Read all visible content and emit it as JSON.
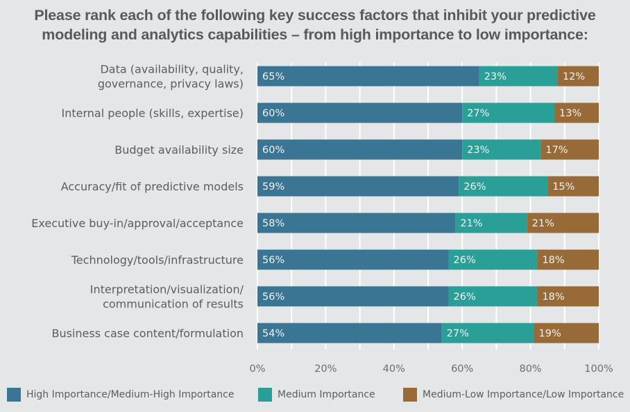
{
  "chart_data": {
    "type": "bar",
    "orientation": "horizontal",
    "stacked": true,
    "title": "Please rank each of the following key success factors that inhibit your predictive modeling and analytics capabilities – from high importance to low importance:",
    "title_lines": [
      "Please rank each of the following key success factors that inhibit your predictive",
      "modeling and analytics capabilities – from high importance to low importance:"
    ],
    "categories": [
      [
        "Data (availability, quality,",
        "governance, privacy laws)"
      ],
      [
        "Internal people (skills, expertise)"
      ],
      [
        "Budget availability size"
      ],
      [
        "Accuracy/fit of predictive models"
      ],
      [
        "Executive buy-in/approval/acceptance"
      ],
      [
        "Technology/tools/infrastructure"
      ],
      [
        "Interpretation/visualization/",
        "communication of results"
      ],
      [
        "Business case content/formulation"
      ]
    ],
    "series": [
      {
        "name": "High Importance/Medium-High Importance",
        "color": "#3b7594",
        "values": [
          65,
          60,
          60,
          59,
          58,
          56,
          56,
          54
        ]
      },
      {
        "name": "Medium Importance",
        "color": "#2a9f97",
        "values": [
          23,
          27,
          23,
          26,
          21,
          26,
          26,
          27
        ]
      },
      {
        "name": "Medium-Low Importance/Low Importance",
        "color": "#986a37",
        "values": [
          12,
          13,
          17,
          15,
          21,
          18,
          18,
          19
        ]
      }
    ],
    "value_suffix": "%",
    "xlabel": "",
    "ylabel": "",
    "xlim": [
      0,
      100
    ],
    "xticks": [
      0,
      20,
      40,
      60,
      80,
      100
    ],
    "xtick_labels": [
      "0%",
      "20%",
      "40%",
      "60%",
      "80%",
      "100%"
    ],
    "grid": "vertical, every 10%",
    "legend_position": "bottom"
  },
  "colors": {
    "background": "#e5e6e8",
    "gridline": "#ffffff",
    "text": "#5b5c5e"
  }
}
